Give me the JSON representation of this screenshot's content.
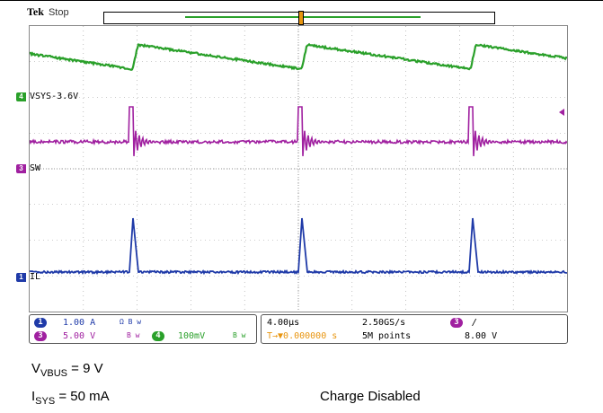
{
  "header": {
    "brand": "Tek",
    "state": "Stop"
  },
  "trigger_marker": "T",
  "channels": [
    {
      "id": "4",
      "label": "VSYS-3.6V",
      "color": "#2aa02a"
    },
    {
      "id": "3",
      "label": "SW",
      "color": "#a020a0"
    },
    {
      "id": "1",
      "label": "IL",
      "color": "#1f3aa8"
    }
  ],
  "readout": {
    "ch1": {
      "num": "1",
      "scale": "1.00 A",
      "coupling": "Ω B w"
    },
    "ch3": {
      "num": "3",
      "scale": "5.00 V",
      "coupling": "B w"
    },
    "ch4": {
      "num": "4",
      "scale": "100mV",
      "coupling": "B w"
    },
    "timebase": "4.00µs",
    "trigger_pos": "T→▼0.000000 s",
    "sample_rate": "2.50GS/s",
    "record_length": "5M points",
    "trig_num": "3",
    "trig_slope": "/",
    "trig_level": "8.00 V"
  },
  "notes": {
    "vbus_main": "V",
    "vbus_sub": "VBUS",
    "vbus_value": " = 9 V",
    "isys_main": "I",
    "isys_sub": "SYS",
    "isys_value": " = 50 mA",
    "charge_state": "Charge Disabled"
  },
  "colors": {
    "ch1": "#1f3aa8",
    "ch3": "#a020a0",
    "ch4": "#2aa02a",
    "trigger": "#e8950f"
  }
}
